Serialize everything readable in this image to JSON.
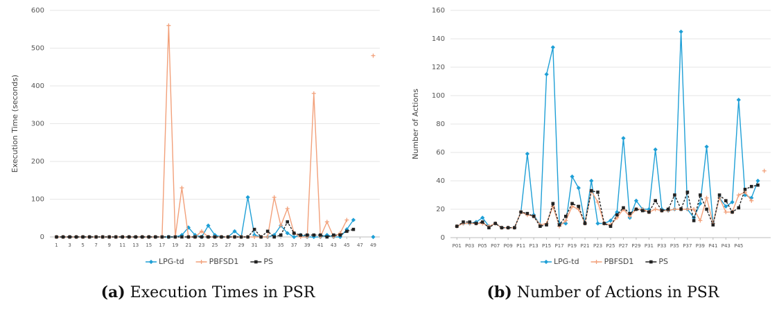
{
  "chart_data": [
    {
      "type": "line",
      "caption_label": "(a)",
      "caption": "Execution Times in PSR",
      "ylabel": "Execution Time (seconds)",
      "x": [
        1,
        2,
        3,
        4,
        5,
        6,
        7,
        8,
        9,
        10,
        11,
        12,
        13,
        14,
        15,
        16,
        17,
        18,
        19,
        20,
        21,
        22,
        23,
        24,
        25,
        26,
        27,
        28,
        29,
        30,
        31,
        32,
        33,
        34,
        35,
        36,
        37,
        38,
        39,
        40,
        41,
        42,
        43,
        44,
        45,
        46,
        47,
        48,
        49
      ],
      "xlim": [
        0,
        50
      ],
      "xticks": [
        1,
        3,
        5,
        7,
        9,
        11,
        13,
        15,
        17,
        19,
        21,
        23,
        25,
        27,
        29,
        31,
        33,
        35,
        37,
        39,
        41,
        43,
        45,
        47,
        49
      ],
      "ylim": [
        0,
        600
      ],
      "yticks": [
        0,
        100,
        200,
        300,
        400,
        500,
        600
      ],
      "grid": true,
      "legend": "bottom",
      "series": [
        {
          "name": "LPG-td",
          "color": "#1e9fd6",
          "values": [
            0,
            0,
            0,
            0,
            0,
            0,
            0,
            0,
            0,
            0,
            0,
            0,
            0,
            0,
            0,
            0,
            0,
            0,
            0,
            5,
            25,
            5,
            0,
            30,
            5,
            0,
            0,
            15,
            0,
            105,
            5,
            0,
            0,
            5,
            30,
            10,
            0,
            5,
            0,
            0,
            0,
            5,
            0,
            0,
            20,
            45,
            null,
            null,
            0
          ]
        },
        {
          "name": "PBFSD1",
          "color": "#f2a07a",
          "values": [
            0,
            0,
            0,
            0,
            0,
            0,
            0,
            0,
            0,
            0,
            0,
            0,
            0,
            0,
            0,
            0,
            0,
            560,
            0,
            130,
            0,
            0,
            15,
            0,
            0,
            0,
            0,
            0,
            0,
            0,
            0,
            0,
            0,
            105,
            30,
            75,
            10,
            0,
            0,
            380,
            0,
            40,
            0,
            10,
            45,
            null,
            null,
            null,
            480
          ]
        },
        {
          "name": "PS",
          "color": "#222222",
          "values": [
            0,
            0,
            0,
            0,
            0,
            0,
            0,
            0,
            0,
            0,
            0,
            0,
            0,
            0,
            0,
            0,
            0,
            0,
            0,
            0,
            0,
            0,
            0,
            0,
            0,
            0,
            0,
            0,
            0,
            0,
            20,
            0,
            15,
            0,
            5,
            40,
            10,
            5,
            5,
            5,
            5,
            0,
            5,
            5,
            15,
            20,
            null,
            null,
            null
          ]
        }
      ]
    },
    {
      "type": "line",
      "caption_label": "(b)",
      "caption": "Number of Actions in PSR",
      "ylabel": "Number of Actions",
      "x": [
        1,
        2,
        3,
        4,
        5,
        6,
        7,
        8,
        9,
        10,
        11,
        12,
        13,
        14,
        15,
        16,
        17,
        18,
        19,
        20,
        21,
        22,
        23,
        24,
        25,
        26,
        27,
        28,
        29,
        30,
        31,
        32,
        33,
        34,
        35,
        36,
        37,
        38,
        39,
        40,
        41,
        42,
        43,
        44,
        45,
        46,
        47,
        48,
        49
      ],
      "xlim": [
        0,
        50
      ],
      "xticks": [
        {
          "value": 1,
          "label": "P01"
        },
        {
          "value": 3,
          "label": "P03"
        },
        {
          "value": 5,
          "label": "P05"
        },
        {
          "value": 7,
          "label": "P07"
        },
        {
          "value": 9,
          "label": "P09"
        },
        {
          "value": 11,
          "label": "P11"
        },
        {
          "value": 13,
          "label": "P13"
        },
        {
          "value": 15,
          "label": "P15"
        },
        {
          "value": 17,
          "label": "P17"
        },
        {
          "value": 19,
          "label": "P19"
        },
        {
          "value": 21,
          "label": "P21"
        },
        {
          "value": 23,
          "label": "P23"
        },
        {
          "value": 25,
          "label": "P25"
        },
        {
          "value": 27,
          "label": "P27"
        },
        {
          "value": 29,
          "label": "P29"
        },
        {
          "value": 31,
          "label": "P31"
        },
        {
          "value": 33,
          "label": "P33"
        },
        {
          "value": 35,
          "label": "P35"
        },
        {
          "value": 37,
          "label": "P37"
        },
        {
          "value": 39,
          "label": "P39"
        },
        {
          "value": 41,
          "label": "P41"
        },
        {
          "value": 43,
          "label": "P43"
        },
        {
          "value": 45,
          "label": "P45"
        }
      ],
      "ylim": [
        0,
        160
      ],
      "yticks": [
        0,
        20,
        40,
        60,
        80,
        100,
        120,
        140,
        160
      ],
      "grid": true,
      "legend": "bottom",
      "series": [
        {
          "name": "LPG-td",
          "color": "#1e9fd6",
          "values": [
            8,
            10,
            10,
            11,
            14,
            8,
            10,
            7,
            7,
            7,
            18,
            59,
            16,
            9,
            115,
            134,
            10,
            10,
            43,
            35,
            10,
            40,
            10,
            10,
            12,
            18,
            70,
            14,
            26,
            20,
            20,
            62,
            20,
            19,
            20,
            145,
            20,
            14,
            24,
            64,
            10,
            28,
            22,
            25,
            97,
            30,
            28,
            40,
            null
          ]
        },
        {
          "name": "PBFSD1",
          "color": "#f2a07a",
          "values": [
            8,
            10,
            10,
            10,
            10,
            8,
            10,
            7,
            7,
            7,
            18,
            16,
            15,
            9,
            10,
            22,
            8,
            12,
            22,
            20,
            10,
            33,
            25,
            10,
            9,
            14,
            20,
            15,
            20,
            20,
            18,
            20,
            19,
            19,
            20,
            20,
            20,
            20,
            12,
            28,
            10,
            28,
            18,
            18,
            30,
            32,
            26,
            null,
            47
          ]
        },
        {
          "name": "PS",
          "color": "#222222",
          "values": [
            8,
            11,
            11,
            10,
            11,
            7,
            10,
            7,
            7,
            7,
            18,
            17,
            15,
            8,
            9,
            24,
            9,
            15,
            24,
            22,
            10,
            33,
            32,
            10,
            8,
            16,
            21,
            17,
            20,
            19,
            18,
            26,
            19,
            20,
            30,
            20,
            32,
            12,
            30,
            20,
            9,
            30,
            26,
            18,
            21,
            34,
            36,
            37,
            null
          ]
        }
      ]
    }
  ]
}
